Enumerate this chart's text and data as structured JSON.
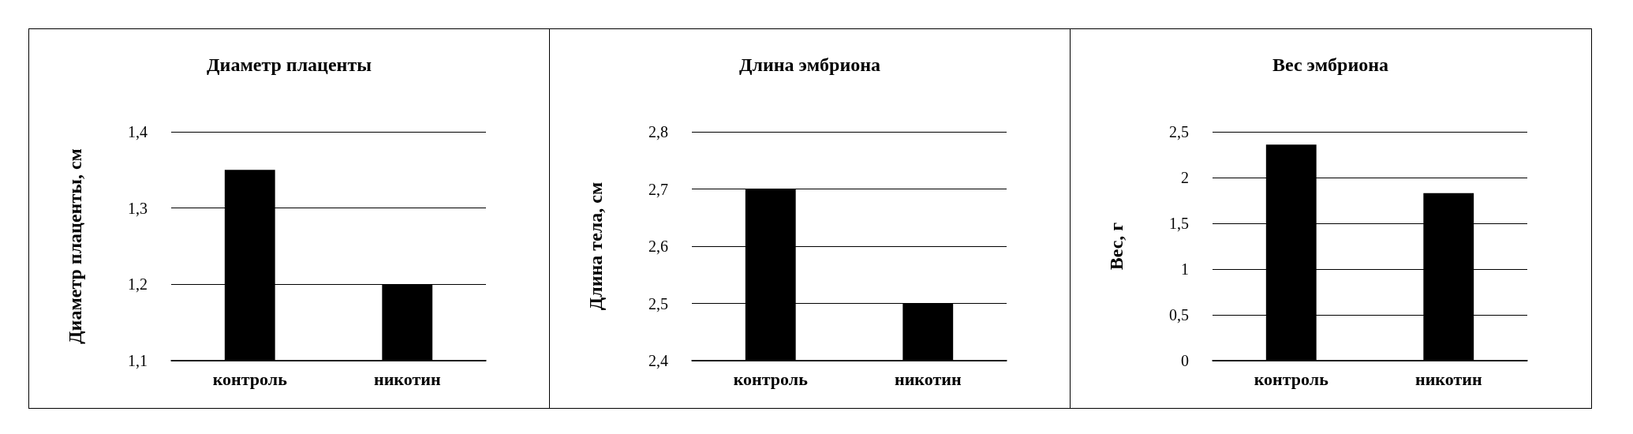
{
  "chart_data": [
    {
      "type": "bar",
      "title": "Диаметр плаценты",
      "ylabel": "Диаметр плаценты, см",
      "categories": [
        "контроль",
        "никотин"
      ],
      "values": [
        1.35,
        1.2
      ],
      "color": "#000000",
      "ylim": [
        1.1,
        1.4
      ],
      "yticks": [
        {
          "value": 1.1,
          "label": "1,1"
        },
        {
          "value": 1.2,
          "label": "1,2"
        },
        {
          "value": 1.3,
          "label": "1,3"
        },
        {
          "value": 1.4,
          "label": "1,4"
        }
      ],
      "grid": "y"
    },
    {
      "type": "bar",
      "title": "Длина эмбриона",
      "ylabel": "Длина тела, см",
      "categories": [
        "контроль",
        "никотин"
      ],
      "values": [
        2.7,
        2.5
      ],
      "color": "#000000",
      "ylim": [
        2.4,
        2.8
      ],
      "yticks": [
        {
          "value": 2.4,
          "label": "2,4"
        },
        {
          "value": 2.5,
          "label": "2,5"
        },
        {
          "value": 2.6,
          "label": "2,6"
        },
        {
          "value": 2.7,
          "label": "2,7"
        },
        {
          "value": 2.8,
          "label": "2,8"
        }
      ],
      "grid": "y"
    },
    {
      "type": "bar",
      "title": "Вес эмбриона",
      "ylabel": "Вес, г",
      "categories": [
        "контроль",
        "никотин"
      ],
      "values": [
        2.36,
        1.83
      ],
      "color": "#000000",
      "ylim": [
        0,
        2.5
      ],
      "yticks": [
        0,
        {
          "value": 0.5,
          "label": "0,5"
        },
        1,
        {
          "value": 1.5,
          "label": "1,5"
        },
        2,
        {
          "value": 2.5,
          "label": "2,5"
        }
      ],
      "grid": "y"
    }
  ]
}
